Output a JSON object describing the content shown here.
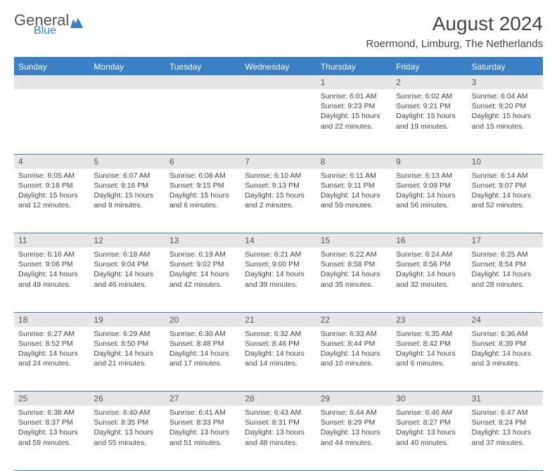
{
  "logo": {
    "text1": "General",
    "text2": "Blue"
  },
  "title": "August 2024",
  "location": "Roermond, Limburg, The Netherlands",
  "colors": {
    "accent": "#3b7fc4",
    "dayrow_bg": "#e6e6e6",
    "text": "#444444"
  },
  "day_headers": [
    "Sunday",
    "Monday",
    "Tuesday",
    "Wednesday",
    "Thursday",
    "Friday",
    "Saturday"
  ],
  "weeks": [
    {
      "nums": [
        "",
        "",
        "",
        "",
        "1",
        "2",
        "3"
      ],
      "cells": [
        {},
        {},
        {},
        {},
        {
          "sunrise": "Sunrise: 6:01 AM",
          "sunset": "Sunset: 9:23 PM",
          "daylight": "Daylight: 15 hours and 22 minutes."
        },
        {
          "sunrise": "Sunrise: 6:02 AM",
          "sunset": "Sunset: 9:21 PM",
          "daylight": "Daylight: 15 hours and 19 minutes."
        },
        {
          "sunrise": "Sunrise: 6:04 AM",
          "sunset": "Sunset: 9:20 PM",
          "daylight": "Daylight: 15 hours and 15 minutes."
        }
      ]
    },
    {
      "nums": [
        "4",
        "5",
        "6",
        "7",
        "8",
        "9",
        "10"
      ],
      "cells": [
        {
          "sunrise": "Sunrise: 6:05 AM",
          "sunset": "Sunset: 9:18 PM",
          "daylight": "Daylight: 15 hours and 12 minutes."
        },
        {
          "sunrise": "Sunrise: 6:07 AM",
          "sunset": "Sunset: 9:16 PM",
          "daylight": "Daylight: 15 hours and 9 minutes."
        },
        {
          "sunrise": "Sunrise: 6:08 AM",
          "sunset": "Sunset: 9:15 PM",
          "daylight": "Daylight: 15 hours and 6 minutes."
        },
        {
          "sunrise": "Sunrise: 6:10 AM",
          "sunset": "Sunset: 9:13 PM",
          "daylight": "Daylight: 15 hours and 2 minutes."
        },
        {
          "sunrise": "Sunrise: 6:11 AM",
          "sunset": "Sunset: 9:11 PM",
          "daylight": "Daylight: 14 hours and 59 minutes."
        },
        {
          "sunrise": "Sunrise: 6:13 AM",
          "sunset": "Sunset: 9:09 PM",
          "daylight": "Daylight: 14 hours and 56 minutes."
        },
        {
          "sunrise": "Sunrise: 6:14 AM",
          "sunset": "Sunset: 9:07 PM",
          "daylight": "Daylight: 14 hours and 52 minutes."
        }
      ]
    },
    {
      "nums": [
        "11",
        "12",
        "13",
        "14",
        "15",
        "16",
        "17"
      ],
      "cells": [
        {
          "sunrise": "Sunrise: 6:16 AM",
          "sunset": "Sunset: 9:06 PM",
          "daylight": "Daylight: 14 hours and 49 minutes."
        },
        {
          "sunrise": "Sunrise: 6:18 AM",
          "sunset": "Sunset: 9:04 PM",
          "daylight": "Daylight: 14 hours and 46 minutes."
        },
        {
          "sunrise": "Sunrise: 6:19 AM",
          "sunset": "Sunset: 9:02 PM",
          "daylight": "Daylight: 14 hours and 42 minutes."
        },
        {
          "sunrise": "Sunrise: 6:21 AM",
          "sunset": "Sunset: 9:00 PM",
          "daylight": "Daylight: 14 hours and 39 minutes."
        },
        {
          "sunrise": "Sunrise: 6:22 AM",
          "sunset": "Sunset: 8:58 PM",
          "daylight": "Daylight: 14 hours and 35 minutes."
        },
        {
          "sunrise": "Sunrise: 6:24 AM",
          "sunset": "Sunset: 8:56 PM",
          "daylight": "Daylight: 14 hours and 32 minutes."
        },
        {
          "sunrise": "Sunrise: 6:25 AM",
          "sunset": "Sunset: 8:54 PM",
          "daylight": "Daylight: 14 hours and 28 minutes."
        }
      ]
    },
    {
      "nums": [
        "18",
        "19",
        "20",
        "21",
        "22",
        "23",
        "24"
      ],
      "cells": [
        {
          "sunrise": "Sunrise: 6:27 AM",
          "sunset": "Sunset: 8:52 PM",
          "daylight": "Daylight: 14 hours and 24 minutes."
        },
        {
          "sunrise": "Sunrise: 6:29 AM",
          "sunset": "Sunset: 8:50 PM",
          "daylight": "Daylight: 14 hours and 21 minutes."
        },
        {
          "sunrise": "Sunrise: 6:30 AM",
          "sunset": "Sunset: 8:48 PM",
          "daylight": "Daylight: 14 hours and 17 minutes."
        },
        {
          "sunrise": "Sunrise: 6:32 AM",
          "sunset": "Sunset: 8:46 PM",
          "daylight": "Daylight: 14 hours and 14 minutes."
        },
        {
          "sunrise": "Sunrise: 6:33 AM",
          "sunset": "Sunset: 8:44 PM",
          "daylight": "Daylight: 14 hours and 10 minutes."
        },
        {
          "sunrise": "Sunrise: 6:35 AM",
          "sunset": "Sunset: 8:42 PM",
          "daylight": "Daylight: 14 hours and 6 minutes."
        },
        {
          "sunrise": "Sunrise: 6:36 AM",
          "sunset": "Sunset: 8:39 PM",
          "daylight": "Daylight: 14 hours and 3 minutes."
        }
      ]
    },
    {
      "nums": [
        "25",
        "26",
        "27",
        "28",
        "29",
        "30",
        "31"
      ],
      "cells": [
        {
          "sunrise": "Sunrise: 6:38 AM",
          "sunset": "Sunset: 8:37 PM",
          "daylight": "Daylight: 13 hours and 59 minutes."
        },
        {
          "sunrise": "Sunrise: 6:40 AM",
          "sunset": "Sunset: 8:35 PM",
          "daylight": "Daylight: 13 hours and 55 minutes."
        },
        {
          "sunrise": "Sunrise: 6:41 AM",
          "sunset": "Sunset: 8:33 PM",
          "daylight": "Daylight: 13 hours and 51 minutes."
        },
        {
          "sunrise": "Sunrise: 6:43 AM",
          "sunset": "Sunset: 8:31 PM",
          "daylight": "Daylight: 13 hours and 48 minutes."
        },
        {
          "sunrise": "Sunrise: 6:44 AM",
          "sunset": "Sunset: 8:29 PM",
          "daylight": "Daylight: 13 hours and 44 minutes."
        },
        {
          "sunrise": "Sunrise: 6:46 AM",
          "sunset": "Sunset: 8:27 PM",
          "daylight": "Daylight: 13 hours and 40 minutes."
        },
        {
          "sunrise": "Sunrise: 6:47 AM",
          "sunset": "Sunset: 8:24 PM",
          "daylight": "Daylight: 13 hours and 37 minutes."
        }
      ]
    }
  ]
}
